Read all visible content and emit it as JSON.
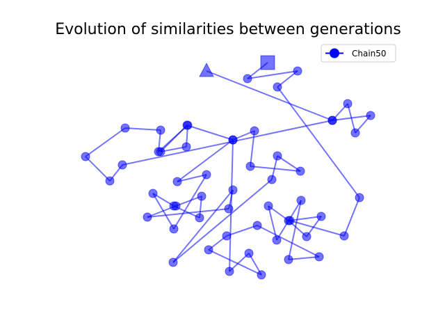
{
  "chart_data": {
    "type": "line",
    "title": "Evolution of similarities between generations",
    "axes_visible": false,
    "grid": false,
    "legend_position": "top-right",
    "series": [
      {
        "name": "Chain50",
        "color": "#0000ff",
        "alpha": 0.55,
        "start_marker": "triangle",
        "end_marker": "square",
        "x": [
          297,
          478,
          533,
          511,
          500,
          478,
          176,
          158,
          123,
          180,
          231,
          228,
          270,
          268,
          231,
          269,
          335,
          255,
          297,
          250,
          220,
          250,
          287,
          290,
          253,
          212,
          329,
          335,
          249,
          391,
          399,
          432,
          360,
          366,
          335,
          330,
          358,
          376,
          300,
          326,
          370,
          459,
          415,
          433,
          398,
          386,
          415,
          441,
          462,
          417,
          495,
          517,
          399,
          428,
          356,
          385
        ],
        "y": [
          102,
          173,
          166,
          191,
          149,
          173,
          237,
          260,
          225,
          184,
          187,
          218,
          180,
          211,
          218,
          180,
          201,
          261,
          251,
          329,
          278,
          296,
          313,
          282,
          296,
          312,
          300,
          273,
          377,
          258,
          224,
          246,
          239,
          188,
          201,
          390,
          364,
          395,
          359,
          339,
          324,
          369,
          373,
          288,
          345,
          296,
          317,
          340,
          311,
          317,
          339,
          284,
          125,
          102,
          113,
          90
        ]
      }
    ]
  }
}
